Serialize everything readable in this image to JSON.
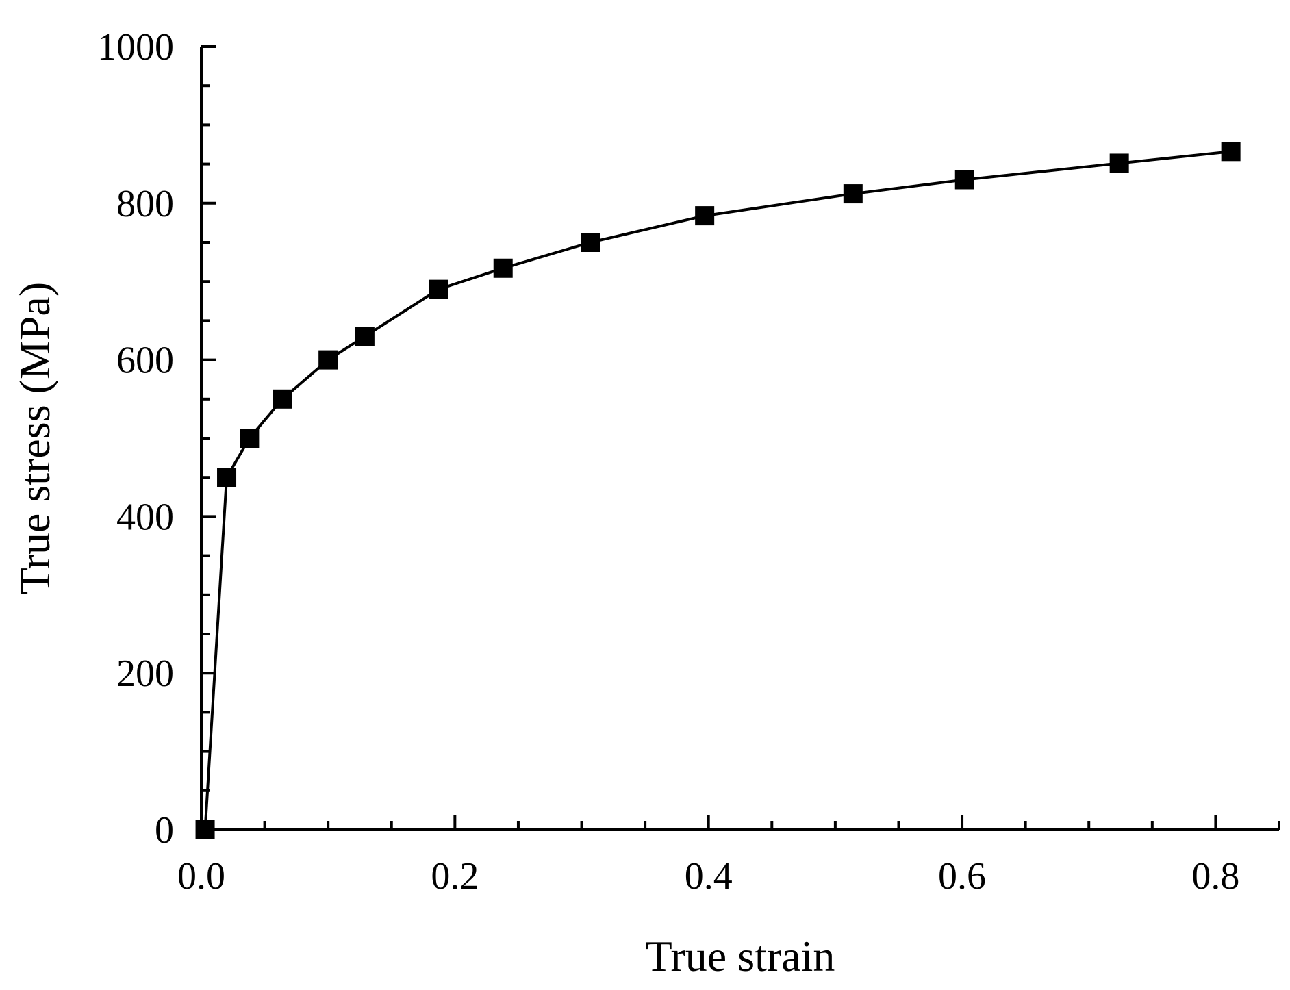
{
  "chart_data": {
    "type": "line",
    "title": "",
    "xlabel": "True strain",
    "ylabel": "True stress (MPa)",
    "xlim": [
      0,
      0.85
    ],
    "ylim": [
      0,
      1000
    ],
    "x_ticks": [
      0.0,
      0.2,
      0.4,
      0.6,
      0.8
    ],
    "x_tick_labels": [
      "0.0",
      "0.2",
      "0.4",
      "0.6",
      "0.8"
    ],
    "y_ticks": [
      0,
      200,
      400,
      600,
      800,
      1000
    ],
    "y_tick_labels": [
      "0",
      "200",
      "400",
      "600",
      "800",
      "1000"
    ],
    "x_minor_step": 0.05,
    "y_minor_step": 50,
    "grid": false,
    "legend": "none",
    "marker": "square",
    "series": [
      {
        "color": "#000000",
        "x": [
          0.003,
          0.02,
          0.038,
          0.064,
          0.1,
          0.129,
          0.187,
          0.238,
          0.307,
          0.397,
          0.514,
          0.602,
          0.724,
          0.812
        ],
        "y": [
          0,
          450,
          500,
          550,
          600,
          630,
          690,
          717,
          750,
          784,
          812,
          830,
          851,
          866
        ]
      }
    ]
  }
}
